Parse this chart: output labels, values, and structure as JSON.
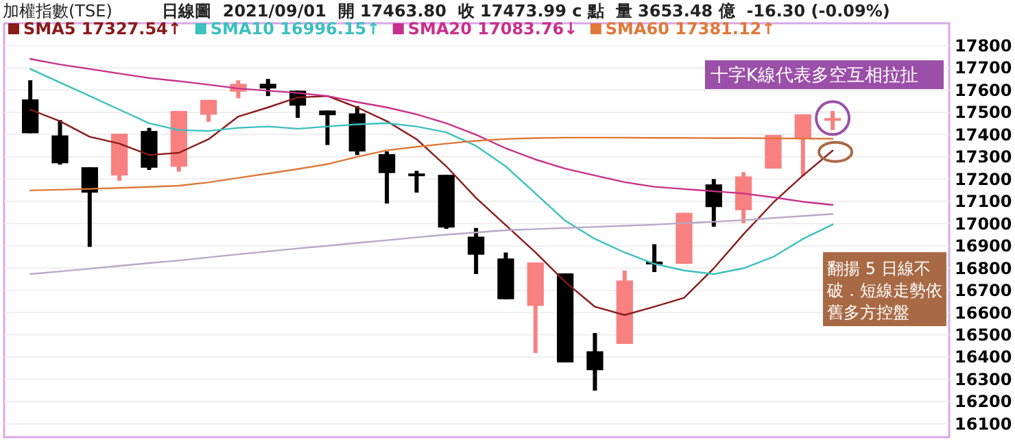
{
  "chart_data": {
    "type": "candlestick",
    "title": "加權指數(TSE)",
    "subtitle": "日線圖  2021/09/01  開 17463.80  收 17473.99 c 點  量 3653.48 億  -16.30 (-0.09%)",
    "categories": [
      null,
      null,
      null,
      null,
      null,
      null,
      null,
      null,
      null,
      null,
      null,
      null,
      null,
      null,
      null,
      null,
      null,
      null,
      null,
      null,
      null,
      null,
      null,
      null,
      null,
      null,
      null,
      null
    ],
    "ohlc": [
      [
        17558,
        17644,
        17406,
        17406
      ],
      [
        17396,
        17465,
        17265,
        17271
      ],
      [
        17253,
        17253,
        16895,
        17139
      ],
      [
        17216,
        17404,
        17192,
        17404
      ],
      [
        17416,
        17430,
        17241,
        17251
      ],
      [
        17255,
        17506,
        17233,
        17506
      ],
      [
        17489,
        17556,
        17457,
        17556
      ],
      [
        17593,
        17644,
        17563,
        17628
      ],
      [
        17628,
        17650,
        17573,
        17607
      ],
      [
        17597,
        17597,
        17475,
        17530
      ],
      [
        17508,
        17508,
        17353,
        17487
      ],
      [
        17495,
        17528,
        17308,
        17324
      ],
      [
        17312,
        17324,
        17090,
        17227
      ],
      [
        17225,
        17237,
        17139,
        17216
      ],
      [
        17219,
        17219,
        16976,
        16982
      ],
      [
        16941,
        16980,
        16773,
        16860
      ],
      [
        16843,
        16870,
        16660,
        16660
      ],
      [
        16630,
        16825,
        16418,
        16825
      ],
      [
        16776,
        16776,
        16376,
        16376
      ],
      [
        16426,
        16508,
        16249,
        16341
      ],
      [
        16459,
        16789,
        16459,
        16744
      ],
      [
        16829,
        16907,
        16782,
        16825
      ],
      [
        16819,
        17048,
        16819,
        17048
      ],
      [
        17176,
        17200,
        16986,
        17074
      ],
      [
        17060,
        17231,
        17002,
        17212
      ],
      [
        17247,
        17398,
        17247,
        17398
      ],
      [
        17385,
        17491,
        17212,
        17491
      ],
      [
        17463.8,
        17506,
        17420,
        17473.99
      ]
    ],
    "colors": [
      "#000000",
      "#000000",
      "#000000",
      "#f88080",
      "#000000",
      "#f88080",
      "#f88080",
      "#f88080",
      "#000000",
      "#000000",
      "#000000",
      "#000000",
      "#000000",
      "#000000",
      "#000000",
      "#000000",
      "#000000",
      "#f88080",
      "#000000",
      "#000000",
      "#f88080",
      "#000000",
      "#f88080",
      "#000000",
      "#f88080",
      "#f88080",
      "#f88080",
      "#f88080"
    ],
    "series": [
      {
        "type": "line",
        "name": "SMA5 17327.54↑",
        "color": "#8b1a1a",
        "values": [
          17512,
          17460,
          17390,
          17359,
          17308,
          17318,
          17379,
          17481,
          17522,
          17567,
          17573,
          17522,
          17460,
          17379,
          17257,
          17115,
          16993,
          16870,
          16738,
          16626,
          16589,
          16626,
          16666,
          16799,
          16952,
          17094,
          17216,
          17328
        ]
      },
      {
        "type": "line",
        "name": "SMA10 16996.15↑",
        "color": "#3cc0c0",
        "values": [
          17695,
          17634,
          17573,
          17512,
          17451,
          17420,
          17416,
          17430,
          17436,
          17426,
          17436,
          17446,
          17451,
          17436,
          17410,
          17349,
          17257,
          17135,
          17013,
          16931,
          16870,
          16819,
          16789,
          16773,
          16799,
          16850,
          16931,
          16996
        ]
      },
      {
        "type": "line",
        "name": "SMA20 17083.76↓",
        "color": "#c8308a",
        "values": [
          17740,
          17715,
          17695,
          17674,
          17654,
          17640,
          17624,
          17607,
          17597,
          17587,
          17573,
          17546,
          17522,
          17491,
          17451,
          17399,
          17338,
          17288,
          17247,
          17216,
          17186,
          17165,
          17155,
          17145,
          17135,
          17118,
          17098,
          17084
        ]
      },
      {
        "type": "line",
        "name": "SMA60 17381.12↑",
        "color": "#e07838",
        "values": [
          17149,
          17152,
          17156,
          17160,
          17165,
          17170,
          17185,
          17205,
          17225,
          17245,
          17267,
          17300,
          17329,
          17345,
          17359,
          17372,
          17380,
          17384,
          17386,
          17386,
          17386,
          17385,
          17385,
          17384,
          17384,
          17383,
          17382,
          17381
        ]
      },
      {
        "type": "line",
        "color": "#b8a8c8",
        "values": [
          16773,
          16785,
          16797,
          16810,
          16822,
          16834,
          16848,
          16862,
          16875,
          16888,
          16900,
          16913,
          16925,
          16938,
          16950,
          16960,
          16970,
          16975,
          16980,
          16985,
          16990,
          16995,
          17002,
          17008,
          17015,
          17025,
          17034,
          17043
        ]
      }
    ],
    "ylim": [
      16040,
      17900
    ],
    "yticks": [
      16100,
      16200,
      16300,
      16400,
      16500,
      16600,
      16700,
      16800,
      16900,
      17000,
      17100,
      17200,
      17300,
      17400,
      17500,
      17600,
      17700,
      17800
    ],
    "grid": "y",
    "legend": "top left",
    "annotations": [
      "十字K線代表多空互相拉扯",
      "翻揚 5 日線不破．短線走勢依舊多方控盤"
    ]
  }
}
